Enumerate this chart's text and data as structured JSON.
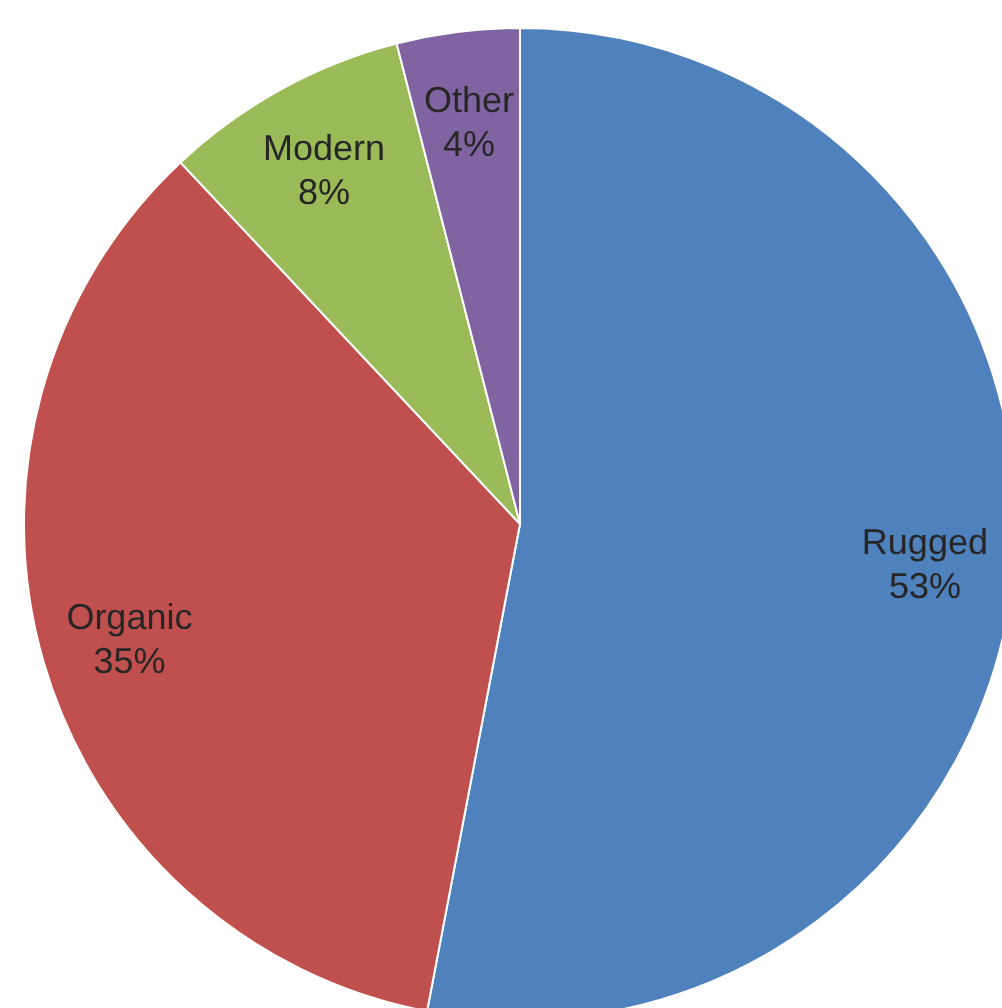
{
  "chart_data": {
    "type": "pie",
    "categories": [
      "Rugged",
      "Organic",
      "Modern",
      "Other"
    ],
    "values": [
      53,
      35,
      8,
      4
    ],
    "value_labels": [
      "53%",
      "35%",
      "8%",
      "4%"
    ],
    "colors": [
      "#4f81bd",
      "#c0504d",
      "#9bbb59",
      "#8064a2"
    ],
    "legend": false
  }
}
